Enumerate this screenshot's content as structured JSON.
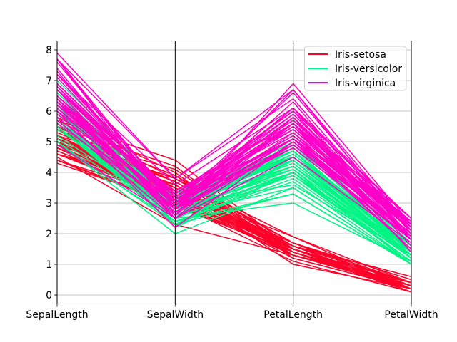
{
  "figure": {
    "background": "#ffffff"
  },
  "chart_data": {
    "type": "line",
    "variant": "parallel-coordinates",
    "title": "",
    "xlabel": "",
    "ylabel": "",
    "categories": [
      "SepalLength",
      "SepalWidth",
      "PetalLength",
      "PetalWidth"
    ],
    "yticks": [
      0,
      1,
      2,
      3,
      4,
      5,
      6,
      7,
      8
    ],
    "ylim": [
      -0.29,
      8.29
    ],
    "grid": true,
    "grid_color": "#b0b0b0",
    "axis_color": "#000000",
    "vertical_axis_line_color": "#000000",
    "legend": {
      "position": "upper right",
      "edge_color": "#cccccc",
      "background_color": "#ffffff",
      "background_alpha": 0.8
    },
    "series": [
      {
        "name": "Iris-setosa",
        "color": "#ff0029",
        "rows": [
          [
            5.1,
            3.5,
            1.4,
            0.2
          ],
          [
            4.9,
            3.0,
            1.4,
            0.2
          ],
          [
            4.7,
            3.2,
            1.3,
            0.2
          ],
          [
            4.6,
            3.1,
            1.5,
            0.2
          ],
          [
            5.0,
            3.6,
            1.4,
            0.2
          ],
          [
            5.4,
            3.9,
            1.7,
            0.4
          ],
          [
            4.6,
            3.4,
            1.4,
            0.3
          ],
          [
            5.0,
            3.4,
            1.5,
            0.2
          ],
          [
            4.4,
            2.9,
            1.4,
            0.2
          ],
          [
            4.9,
            3.1,
            1.5,
            0.1
          ],
          [
            5.4,
            3.7,
            1.5,
            0.2
          ],
          [
            4.8,
            3.4,
            1.6,
            0.2
          ],
          [
            4.8,
            3.0,
            1.4,
            0.1
          ],
          [
            4.3,
            3.0,
            1.1,
            0.1
          ],
          [
            5.8,
            4.0,
            1.2,
            0.2
          ],
          [
            5.7,
            4.4,
            1.5,
            0.4
          ],
          [
            5.4,
            3.9,
            1.3,
            0.4
          ],
          [
            5.1,
            3.5,
            1.4,
            0.3
          ],
          [
            5.7,
            3.8,
            1.7,
            0.3
          ],
          [
            5.1,
            3.8,
            1.5,
            0.3
          ],
          [
            5.4,
            3.4,
            1.7,
            0.2
          ],
          [
            5.1,
            3.7,
            1.5,
            0.4
          ],
          [
            4.6,
            3.6,
            1.0,
            0.2
          ],
          [
            5.1,
            3.3,
            1.7,
            0.5
          ],
          [
            4.8,
            3.4,
            1.9,
            0.2
          ],
          [
            5.0,
            3.0,
            1.6,
            0.2
          ],
          [
            5.0,
            3.4,
            1.6,
            0.4
          ],
          [
            5.2,
            3.5,
            1.5,
            0.2
          ],
          [
            5.2,
            3.4,
            1.4,
            0.2
          ],
          [
            4.7,
            3.2,
            1.6,
            0.2
          ],
          [
            4.8,
            3.1,
            1.6,
            0.2
          ],
          [
            5.4,
            3.4,
            1.5,
            0.4
          ],
          [
            5.2,
            4.1,
            1.5,
            0.1
          ],
          [
            5.5,
            4.2,
            1.4,
            0.2
          ],
          [
            4.9,
            3.1,
            1.5,
            0.1
          ],
          [
            5.0,
            3.2,
            1.2,
            0.2
          ],
          [
            5.5,
            3.5,
            1.3,
            0.2
          ],
          [
            4.9,
            3.6,
            1.4,
            0.1
          ],
          [
            4.4,
            3.0,
            1.3,
            0.2
          ],
          [
            5.1,
            3.4,
            1.5,
            0.2
          ],
          [
            5.0,
            3.5,
            1.3,
            0.3
          ],
          [
            4.5,
            2.3,
            1.3,
            0.3
          ],
          [
            4.4,
            3.2,
            1.3,
            0.2
          ],
          [
            5.0,
            3.5,
            1.6,
            0.6
          ],
          [
            5.1,
            3.8,
            1.9,
            0.4
          ],
          [
            4.8,
            3.0,
            1.4,
            0.3
          ],
          [
            5.1,
            3.8,
            1.6,
            0.2
          ],
          [
            4.6,
            3.2,
            1.4,
            0.2
          ],
          [
            5.3,
            3.7,
            1.5,
            0.2
          ],
          [
            5.0,
            3.3,
            1.4,
            0.2
          ]
        ]
      },
      {
        "name": "Iris-versicolor",
        "color": "#00f584",
        "rows": [
          [
            7.0,
            3.2,
            4.7,
            1.4
          ],
          [
            6.4,
            3.2,
            4.5,
            1.5
          ],
          [
            6.9,
            3.1,
            4.9,
            1.5
          ],
          [
            5.5,
            2.3,
            4.0,
            1.3
          ],
          [
            6.5,
            2.8,
            4.6,
            1.5
          ],
          [
            5.7,
            2.8,
            4.5,
            1.3
          ],
          [
            6.3,
            3.3,
            4.7,
            1.6
          ],
          [
            4.9,
            2.4,
            3.3,
            1.0
          ],
          [
            6.6,
            2.9,
            4.6,
            1.3
          ],
          [
            5.2,
            2.7,
            3.9,
            1.4
          ],
          [
            5.0,
            2.0,
            3.5,
            1.0
          ],
          [
            5.9,
            3.0,
            4.2,
            1.5
          ],
          [
            6.0,
            2.2,
            4.0,
            1.0
          ],
          [
            6.1,
            2.9,
            4.7,
            1.4
          ],
          [
            5.6,
            2.9,
            3.6,
            1.3
          ],
          [
            6.7,
            3.1,
            4.4,
            1.4
          ],
          [
            5.6,
            3.0,
            4.5,
            1.5
          ],
          [
            5.8,
            2.7,
            4.1,
            1.0
          ],
          [
            6.2,
            2.2,
            4.5,
            1.5
          ],
          [
            5.6,
            2.5,
            3.9,
            1.1
          ],
          [
            5.9,
            3.2,
            4.8,
            1.8
          ],
          [
            6.1,
            2.8,
            4.0,
            1.3
          ],
          [
            6.3,
            2.5,
            4.9,
            1.5
          ],
          [
            6.1,
            2.8,
            4.7,
            1.2
          ],
          [
            6.4,
            2.9,
            4.3,
            1.3
          ],
          [
            6.6,
            3.0,
            4.4,
            1.4
          ],
          [
            6.8,
            2.8,
            4.8,
            1.4
          ],
          [
            6.7,
            3.0,
            5.0,
            1.7
          ],
          [
            6.0,
            2.9,
            4.5,
            1.5
          ],
          [
            5.7,
            2.6,
            3.5,
            1.0
          ],
          [
            5.5,
            2.4,
            3.8,
            1.1
          ],
          [
            5.5,
            2.4,
            3.7,
            1.0
          ],
          [
            5.8,
            2.7,
            3.9,
            1.2
          ],
          [
            6.0,
            2.7,
            5.1,
            1.6
          ],
          [
            5.4,
            3.0,
            4.5,
            1.5
          ],
          [
            6.0,
            3.4,
            4.5,
            1.6
          ],
          [
            6.7,
            3.1,
            4.7,
            1.5
          ],
          [
            6.3,
            2.3,
            4.4,
            1.3
          ],
          [
            5.6,
            3.0,
            4.1,
            1.3
          ],
          [
            5.5,
            2.5,
            4.0,
            1.3
          ],
          [
            5.5,
            2.6,
            4.4,
            1.2
          ],
          [
            6.1,
            3.0,
            4.6,
            1.4
          ],
          [
            5.8,
            2.6,
            4.0,
            1.2
          ],
          [
            5.0,
            2.3,
            3.3,
            1.0
          ],
          [
            5.6,
            2.7,
            4.2,
            1.3
          ],
          [
            5.7,
            3.0,
            4.2,
            1.2
          ],
          [
            5.7,
            2.9,
            4.2,
            1.3
          ],
          [
            6.2,
            2.9,
            4.3,
            1.3
          ],
          [
            5.1,
            2.5,
            3.0,
            1.1
          ],
          [
            5.7,
            2.8,
            4.1,
            1.3
          ]
        ]
      },
      {
        "name": "Iris-virginica",
        "color": "#ff00c8",
        "rows": [
          [
            6.3,
            3.3,
            6.0,
            2.5
          ],
          [
            5.8,
            2.7,
            5.1,
            1.9
          ],
          [
            7.1,
            3.0,
            5.9,
            2.1
          ],
          [
            6.3,
            2.9,
            5.6,
            1.8
          ],
          [
            6.5,
            3.0,
            5.8,
            2.2
          ],
          [
            7.6,
            3.0,
            6.6,
            2.1
          ],
          [
            4.9,
            2.5,
            4.5,
            1.7
          ],
          [
            7.3,
            2.9,
            6.3,
            1.8
          ],
          [
            6.7,
            2.5,
            5.8,
            1.8
          ],
          [
            7.2,
            3.6,
            6.1,
            2.5
          ],
          [
            6.5,
            3.2,
            5.1,
            2.0
          ],
          [
            6.4,
            2.7,
            5.3,
            1.9
          ],
          [
            6.8,
            3.0,
            5.5,
            2.1
          ],
          [
            5.7,
            2.5,
            5.0,
            2.0
          ],
          [
            5.8,
            2.8,
            5.1,
            2.4
          ],
          [
            6.4,
            3.2,
            5.3,
            2.3
          ],
          [
            6.5,
            3.0,
            5.5,
            1.8
          ],
          [
            7.7,
            3.8,
            6.7,
            2.2
          ],
          [
            7.7,
            2.6,
            6.9,
            2.3
          ],
          [
            6.0,
            2.2,
            5.0,
            1.5
          ],
          [
            6.9,
            3.2,
            5.7,
            2.3
          ],
          [
            5.6,
            2.8,
            4.9,
            2.0
          ],
          [
            7.7,
            2.8,
            6.7,
            2.0
          ],
          [
            6.3,
            2.7,
            4.9,
            1.8
          ],
          [
            6.7,
            3.3,
            5.7,
            2.1
          ],
          [
            7.2,
            3.2,
            6.0,
            1.8
          ],
          [
            6.2,
            2.8,
            4.8,
            1.8
          ],
          [
            6.1,
            3.0,
            4.9,
            1.8
          ],
          [
            6.4,
            2.8,
            5.6,
            2.1
          ],
          [
            7.2,
            3.0,
            5.8,
            1.6
          ],
          [
            7.4,
            2.8,
            6.1,
            1.9
          ],
          [
            7.9,
            3.8,
            6.4,
            2.0
          ],
          [
            6.4,
            2.8,
            5.6,
            2.2
          ],
          [
            6.3,
            2.8,
            5.1,
            1.5
          ],
          [
            6.1,
            2.6,
            5.6,
            1.4
          ],
          [
            7.7,
            3.0,
            6.1,
            2.3
          ],
          [
            6.3,
            3.4,
            5.6,
            2.4
          ],
          [
            6.4,
            3.1,
            5.5,
            1.8
          ],
          [
            6.0,
            3.0,
            4.8,
            1.8
          ],
          [
            6.9,
            3.1,
            5.4,
            2.1
          ],
          [
            6.7,
            3.1,
            5.6,
            2.4
          ],
          [
            6.9,
            3.1,
            5.1,
            2.3
          ],
          [
            5.8,
            2.7,
            5.1,
            1.9
          ],
          [
            6.8,
            3.2,
            5.9,
            2.3
          ],
          [
            6.7,
            3.3,
            5.7,
            2.5
          ],
          [
            6.7,
            3.0,
            5.2,
            2.3
          ],
          [
            6.3,
            2.5,
            5.0,
            1.9
          ],
          [
            6.5,
            3.0,
            5.2,
            2.0
          ],
          [
            6.2,
            3.4,
            5.4,
            2.3
          ],
          [
            5.9,
            3.0,
            5.1,
            1.8
          ]
        ]
      }
    ]
  }
}
